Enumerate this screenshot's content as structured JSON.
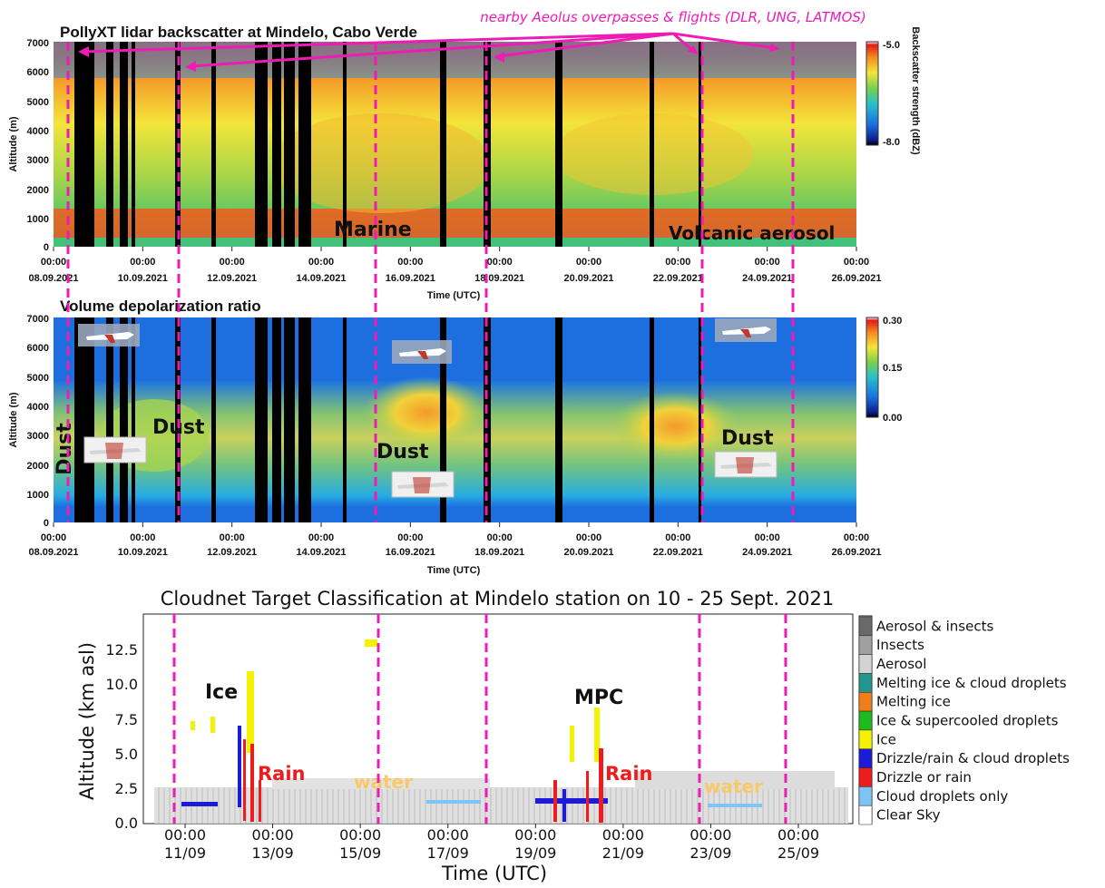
{
  "annotations": {
    "flights_note": "nearby Aeolus overpasses & flights (DLR, UNG, LATMOS)"
  },
  "colors": {
    "dashed_line": "#ee1bb4",
    "arrow": "#ee1bb4",
    "data_gap": "#000000"
  },
  "chart_data": [
    {
      "type": "heatmap",
      "title": "PollyXT lidar backscatter at Mindelo, Cabo Verde",
      "xlabel": "Time (UTC)",
      "ylabel": "Altitude (m)",
      "x_ticks": [
        {
          "time": "00:00",
          "date": "08.09.2021"
        },
        {
          "time": "00:00",
          "date": "10.09.2021"
        },
        {
          "time": "00:00",
          "date": "12.09.2021"
        },
        {
          "time": "00:00",
          "date": "14.09.2021"
        },
        {
          "time": "00:00",
          "date": "16.09.2021"
        },
        {
          "time": "00:00",
          "date": "18.09.2021"
        },
        {
          "time": "00:00",
          "date": "20.09.2021"
        },
        {
          "time": "00:00",
          "date": "22.09.2021"
        },
        {
          "time": "00:00",
          "date": "24.09.2021"
        },
        {
          "time": "00:00",
          "date": "26.09.2021"
        }
      ],
      "y_ticks": [
        "0",
        "1000",
        "2000",
        "3000",
        "4000",
        "5000",
        "6000",
        "7000"
      ],
      "ylim": [
        0,
        7000
      ],
      "colorbar": {
        "label": "Backscatter strength (dBZ)",
        "max_label": "-5.0",
        "min_label": "-8.0"
      },
      "annotations": [
        "Marine",
        "Volcanic aerosol"
      ]
    },
    {
      "type": "heatmap",
      "title": "Volume depolarization ratio",
      "xlabel": "Time (UTC)",
      "ylabel": "Altitude (m)",
      "x_ticks": [
        {
          "time": "00:00",
          "date": "08.09.2021"
        },
        {
          "time": "00:00",
          "date": "10.09.2021"
        },
        {
          "time": "00:00",
          "date": "12.09.2021"
        },
        {
          "time": "00:00",
          "date": "14.09.2021"
        },
        {
          "time": "00:00",
          "date": "16.09.2021"
        },
        {
          "time": "00:00",
          "date": "18.09.2021"
        },
        {
          "time": "00:00",
          "date": "20.09.2021"
        },
        {
          "time": "00:00",
          "date": "22.09.2021"
        },
        {
          "time": "00:00",
          "date": "24.09.2021"
        },
        {
          "time": "00:00",
          "date": "26.09.2021"
        }
      ],
      "y_ticks": [
        "0",
        "1000",
        "2000",
        "3000",
        "4000",
        "5000",
        "6000",
        "7000"
      ],
      "ylim": [
        0,
        7000
      ],
      "colorbar": {
        "ticks": [
          "0.30",
          "0.15",
          "0.00"
        ]
      },
      "annotations": [
        "Dust",
        "Dust",
        "Dust",
        "Dust"
      ]
    },
    {
      "type": "heatmap",
      "title": "Cloudnet Target Classification at Mindelo station  on 10 - 25 Sept. 2021",
      "xlabel": "Time (UTC)",
      "ylabel": "Altitude (km asl)",
      "x_ticks": [
        {
          "time": "00:00",
          "date": "11/09"
        },
        {
          "time": "00:00",
          "date": "13/09"
        },
        {
          "time": "00:00",
          "date": "15/09"
        },
        {
          "time": "00:00",
          "date": "17/09"
        },
        {
          "time": "00:00",
          "date": "19/09"
        },
        {
          "time": "00:00",
          "date": "21/09"
        },
        {
          "time": "00:00",
          "date": "23/09"
        },
        {
          "time": "00:00",
          "date": "25/09"
        }
      ],
      "y_ticks": [
        "0.0",
        "2.5",
        "5.0",
        "7.5",
        "10.0",
        "12.5"
      ],
      "ylim": [
        0,
        14.5
      ],
      "annotations": [
        "Ice",
        "Rain",
        "water",
        "MPC",
        "Rain",
        "water"
      ],
      "legend": [
        {
          "label": "Aerosol & insects",
          "color": "#696969"
        },
        {
          "label": "Insects",
          "color": "#a0a0a0"
        },
        {
          "label": "Aerosol",
          "color": "#d3d3d3"
        },
        {
          "label": "Melting ice & cloud droplets",
          "color": "#20968c"
        },
        {
          "label": "Melting ice",
          "color": "#f07e1a"
        },
        {
          "label": "Ice & supercooled droplets",
          "color": "#1fba1f"
        },
        {
          "label": "Ice",
          "color": "#f3f300"
        },
        {
          "label": "Drizzle/rain & cloud droplets",
          "color": "#1b1bd8"
        },
        {
          "label": "Drizzle or rain",
          "color": "#ee1c1c"
        },
        {
          "label": "Cloud droplets only",
          "color": "#7dc3f3"
        },
        {
          "label": "Clear Sky",
          "color": "#ffffff"
        }
      ]
    }
  ]
}
